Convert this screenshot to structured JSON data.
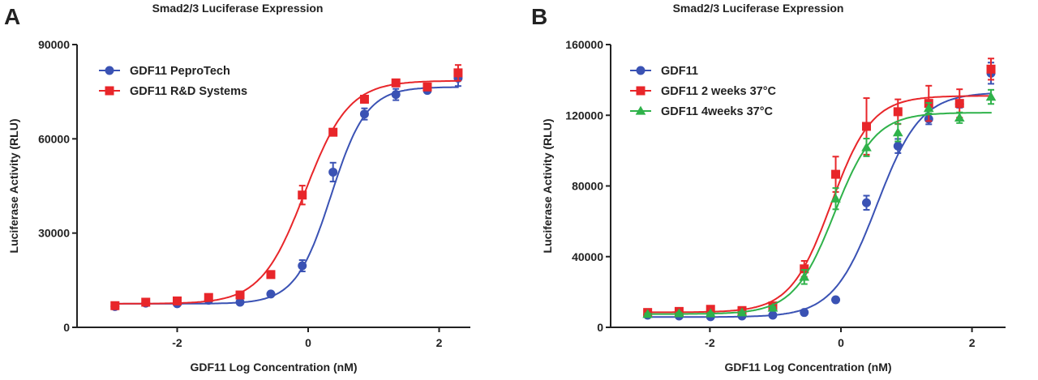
{
  "chart_data": [
    {
      "panel_label": "A",
      "type": "scatter",
      "title": "Smad2/3 Luciferase Expression",
      "xlabel": "GDF11 Log Concentration (nM)",
      "ylabel": "Luciferase Activity (RLU)",
      "xlim": [
        -3.2,
        2.5
      ],
      "ylim": [
        0,
        90000
      ],
      "xticks": [
        -2,
        0,
        2
      ],
      "yticks": [
        0,
        30000,
        60000,
        90000
      ],
      "xtick_labels": [
        "-2",
        "0",
        "2"
      ],
      "ytick_labels": [
        "0",
        "30000",
        "60000",
        "90000"
      ],
      "grid": false,
      "legend_position": "top-left",
      "x": [
        -2.95,
        -2.48,
        -2.0,
        -1.52,
        -1.04,
        -0.57,
        -0.09,
        0.38,
        0.86,
        1.34,
        1.82,
        2.29
      ],
      "series": [
        {
          "name": "GDF11 PeproTech",
          "color": "#3a52b4",
          "marker": "circle",
          "values": [
            6600,
            7700,
            7500,
            8600,
            8000,
            10600,
            19600,
            49400,
            67900,
            74100,
            75400,
            79300
          ],
          "errors": [
            300,
            300,
            300,
            300,
            300,
            400,
            1800,
            3000,
            1800,
            1800,
            600,
            2500
          ],
          "fit": {
            "bottom": 7500,
            "top": 76500,
            "logEC50": 0.35,
            "hill": 1.6
          }
        },
        {
          "name": "GDF11 R&D Systems",
          "color": "#e8262a",
          "marker": "square",
          "values": [
            6900,
            8000,
            8400,
            9500,
            10300,
            16800,
            42100,
            62100,
            72600,
            77800,
            76500,
            81000
          ],
          "errors": [
            300,
            300,
            300,
            300,
            300,
            300,
            3000,
            500,
            800,
            700,
            500,
            2500
          ],
          "fit": {
            "bottom": 7500,
            "top": 78500,
            "logEC50": -0.05,
            "hill": 1.3
          }
        }
      ]
    },
    {
      "panel_label": "B",
      "type": "scatter",
      "title": "Smad2/3 Luciferase Expression",
      "xlabel": "GDF11 Log Concentration (nM)",
      "ylabel": "Luciferase Activity (RLU)",
      "xlim": [
        -3.2,
        2.5
      ],
      "ylim": [
        0,
        160000
      ],
      "xticks": [
        -2,
        0,
        2
      ],
      "yticks": [
        0,
        40000,
        80000,
        120000,
        160000
      ],
      "xtick_labels": [
        "-2",
        "0",
        "2"
      ],
      "ytick_labels": [
        "0",
        "40000",
        "80000",
        "120000",
        "160000"
      ],
      "grid": false,
      "legend_position": "top-left",
      "x": [
        -2.95,
        -2.47,
        -1.99,
        -1.51,
        -1.04,
        -0.56,
        -0.08,
        0.39,
        0.87,
        1.34,
        1.81,
        2.29
      ],
      "series": [
        {
          "name": "GDF11",
          "color": "#3a52b4",
          "marker": "circle",
          "values": [
            6900,
            6400,
            6000,
            6400,
            6900,
            8400,
            15600,
            70500,
            102600,
            117900,
            126300,
            143800
          ],
          "errors": [
            300,
            300,
            300,
            300,
            300,
            400,
            300,
            4000,
            4000,
            3000,
            2000,
            6000
          ],
          "fit": {
            "bottom": 5800,
            "top": 133000,
            "logEC50": 0.55,
            "hill": 1.3
          }
        },
        {
          "name": "GDF11 2 weeks 37°C",
          "color": "#e8262a",
          "marker": "square",
          "values": [
            8400,
            9000,
            10200,
            9500,
            12100,
            33100,
            86600,
            113700,
            122000,
            126700,
            126700,
            146100
          ],
          "errors": [
            500,
            500,
            500,
            500,
            800,
            4500,
            10000,
            16000,
            7000,
            10000,
            8000,
            6000
          ],
          "fit": {
            "bottom": 8500,
            "top": 131000,
            "logEC50": -0.15,
            "hill": 1.4
          }
        },
        {
          "name": "GDF11 4weeks 37°C",
          "color": "#2fb24a",
          "marker": "triangle",
          "values": [
            7500,
            7900,
            7900,
            8400,
            11000,
            28500,
            72800,
            101800,
            110200,
            124000,
            118600,
            130400
          ],
          "errors": [
            400,
            400,
            400,
            400,
            600,
            4000,
            6000,
            5000,
            5000,
            3000,
            3000,
            4000
          ],
          "fit": {
            "bottom": 7500,
            "top": 121500,
            "logEC50": -0.1,
            "hill": 1.4
          }
        }
      ]
    }
  ]
}
